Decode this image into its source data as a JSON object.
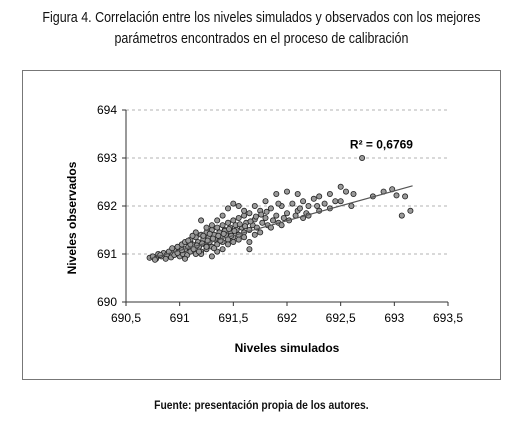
{
  "figure": {
    "title_line1": "Figura 4. Correlación entre los niveles simulados y observados con los mejores",
    "title_line2": "parámetros encontrados en el proceso de calibración",
    "source": "Fuente: presentación propia de los autores."
  },
  "chart_data": {
    "type": "scatter",
    "xlabel": "Niveles simulados",
    "ylabel": "Niveles observados",
    "xlim": [
      690.5,
      693.5
    ],
    "ylim": [
      690,
      694
    ],
    "xticks": [
      "690,5",
      "691",
      "691,5",
      "692",
      "692,5",
      "693",
      "693,5"
    ],
    "yticks": [
      "690",
      "691",
      "692",
      "693",
      "694"
    ],
    "grid": "horizontal dashed",
    "annotation": "R² = 0,6769",
    "trendline": {
      "x": [
        690.72,
        693.17
      ],
      "y": [
        690.9,
        692.42
      ]
    },
    "points": [
      [
        690.72,
        690.92
      ],
      [
        690.75,
        690.95
      ],
      [
        690.78,
        690.9
      ],
      [
        690.8,
        691.0
      ],
      [
        690.83,
        690.95
      ],
      [
        690.85,
        691.02
      ],
      [
        690.88,
        690.98
      ],
      [
        690.9,
        691.05
      ],
      [
        690.92,
        690.93
      ],
      [
        690.95,
        691.1
      ],
      [
        690.97,
        691.0
      ],
      [
        690.98,
        691.15
      ],
      [
        691.0,
        690.95
      ],
      [
        691.0,
        691.05
      ],
      [
        691.02,
        691.2
      ],
      [
        691.03,
        691.0
      ],
      [
        691.05,
        691.1
      ],
      [
        691.05,
        691.25
      ],
      [
        691.07,
        690.98
      ],
      [
        691.08,
        691.15
      ],
      [
        691.1,
        691.05
      ],
      [
        691.1,
        691.3
      ],
      [
        691.12,
        691.2
      ],
      [
        691.13,
        691.1
      ],
      [
        691.15,
        691.35
      ],
      [
        691.15,
        691.0
      ],
      [
        691.17,
        691.25
      ],
      [
        691.18,
        691.15
      ],
      [
        691.2,
        691.4
      ],
      [
        691.2,
        691.05
      ],
      [
        691.22,
        691.3
      ],
      [
        691.23,
        691.2
      ],
      [
        691.25,
        691.45
      ],
      [
        691.25,
        691.1
      ],
      [
        691.27,
        691.35
      ],
      [
        691.28,
        691.25
      ],
      [
        691.3,
        691.5
      ],
      [
        691.3,
        691.15
      ],
      [
        691.32,
        691.4
      ],
      [
        691.33,
        691.3
      ],
      [
        691.35,
        691.55
      ],
      [
        691.35,
        691.2
      ],
      [
        691.37,
        691.45
      ],
      [
        691.38,
        691.35
      ],
      [
        691.4,
        691.6
      ],
      [
        691.4,
        691.25
      ],
      [
        691.42,
        691.5
      ],
      [
        691.43,
        691.4
      ],
      [
        691.45,
        691.3
      ],
      [
        691.45,
        691.65
      ],
      [
        691.47,
        691.55
      ],
      [
        691.48,
        691.45
      ],
      [
        691.5,
        691.35
      ],
      [
        691.5,
        691.7
      ],
      [
        691.52,
        691.6
      ],
      [
        691.53,
        691.5
      ],
      [
        691.55,
        691.4
      ],
      [
        691.55,
        691.75
      ],
      [
        691.58,
        691.55
      ],
      [
        691.6,
        691.45
      ],
      [
        691.6,
        691.8
      ],
      [
        691.62,
        691.65
      ],
      [
        691.65,
        691.5
      ],
      [
        691.65,
        691.85
      ],
      [
        691.68,
        691.6
      ],
      [
        691.7,
        691.72
      ],
      [
        691.72,
        691.55
      ],
      [
        691.75,
        691.9
      ],
      [
        691.77,
        691.65
      ],
      [
        691.8,
        691.75
      ],
      [
        691.82,
        691.6
      ],
      [
        691.85,
        691.95
      ],
      [
        691.87,
        691.7
      ],
      [
        691.9,
        691.8
      ],
      [
        691.92,
        691.65
      ],
      [
        691.95,
        692.0
      ],
      [
        691.97,
        691.75
      ],
      [
        692.0,
        691.85
      ],
      [
        692.02,
        691.7
      ],
      [
        692.05,
        692.05
      ],
      [
        692.08,
        691.8
      ],
      [
        692.1,
        691.9
      ],
      [
        692.12,
        691.95
      ],
      [
        692.15,
        692.1
      ],
      [
        692.18,
        691.85
      ],
      [
        692.2,
        692.0
      ],
      [
        692.25,
        692.15
      ],
      [
        692.28,
        692.0
      ],
      [
        692.3,
        692.2
      ],
      [
        692.35,
        692.05
      ],
      [
        692.4,
        692.25
      ],
      [
        692.45,
        692.1
      ],
      [
        692.5,
        692.4
      ],
      [
        692.55,
        692.3
      ],
      [
        692.6,
        692.0
      ],
      [
        692.62,
        692.25
      ],
      [
        692.7,
        693.0
      ],
      [
        692.8,
        692.2
      ],
      [
        692.9,
        692.3
      ],
      [
        692.98,
        692.35
      ],
      [
        693.02,
        692.22
      ],
      [
        693.07,
        691.8
      ],
      [
        693.1,
        692.2
      ],
      [
        693.15,
        691.9
      ],
      [
        691.2,
        691.0
      ],
      [
        691.25,
        691.15
      ],
      [
        691.3,
        690.95
      ],
      [
        691.35,
        691.05
      ],
      [
        691.15,
        691.45
      ],
      [
        691.1,
        691.2
      ],
      [
        691.05,
        690.9
      ],
      [
        690.95,
        690.98
      ],
      [
        691.4,
        691.1
      ],
      [
        691.45,
        691.2
      ],
      [
        691.5,
        691.25
      ],
      [
        691.55,
        691.3
      ],
      [
        691.6,
        691.35
      ],
      [
        691.65,
        691.25
      ],
      [
        691.7,
        691.4
      ],
      [
        691.3,
        691.6
      ],
      [
        691.2,
        691.7
      ],
      [
        691.25,
        691.55
      ],
      [
        691.35,
        691.7
      ],
      [
        691.4,
        691.8
      ],
      [
        691.45,
        691.95
      ],
      [
        691.5,
        692.05
      ],
      [
        691.6,
        691.9
      ],
      [
        691.7,
        692.0
      ],
      [
        691.8,
        692.1
      ],
      [
        691.55,
        692.0
      ],
      [
        691.9,
        692.25
      ],
      [
        692.0,
        692.3
      ],
      [
        692.1,
        692.25
      ],
      [
        692.15,
        691.75
      ],
      [
        692.2,
        691.8
      ],
      [
        692.3,
        691.9
      ],
      [
        692.4,
        691.95
      ],
      [
        692.5,
        692.1
      ],
      [
        691.92,
        692.05
      ],
      [
        691.75,
        691.45
      ],
      [
        691.85,
        691.55
      ],
      [
        691.95,
        691.6
      ],
      [
        691.65,
        691.1
      ],
      [
        691.18,
        691.05
      ],
      [
        691.22,
        691.38
      ],
      [
        691.28,
        691.42
      ],
      [
        691.32,
        691.12
      ],
      [
        691.38,
        691.28
      ],
      [
        691.42,
        691.48
      ],
      [
        691.48,
        691.38
      ],
      [
        691.12,
        691.38
      ],
      [
        691.08,
        691.28
      ],
      [
        691.02,
        691.08
      ],
      [
        690.98,
        691.02
      ],
      [
        690.93,
        691.12
      ],
      [
        690.87,
        690.9
      ],
      [
        690.82,
        690.98
      ],
      [
        690.77,
        690.88
      ],
      [
        691.16,
        691.18
      ],
      [
        691.21,
        691.22
      ],
      [
        691.26,
        691.28
      ],
      [
        691.31,
        691.32
      ],
      [
        691.36,
        691.38
      ],
      [
        691.41,
        691.42
      ],
      [
        691.46,
        691.52
      ],
      [
        691.51,
        691.48
      ],
      [
        691.56,
        691.62
      ],
      [
        691.61,
        691.58
      ],
      [
        691.66,
        691.68
      ],
      [
        691.71,
        691.78
      ],
      [
        691.76,
        691.82
      ],
      [
        691.81,
        691.88
      ]
    ]
  }
}
